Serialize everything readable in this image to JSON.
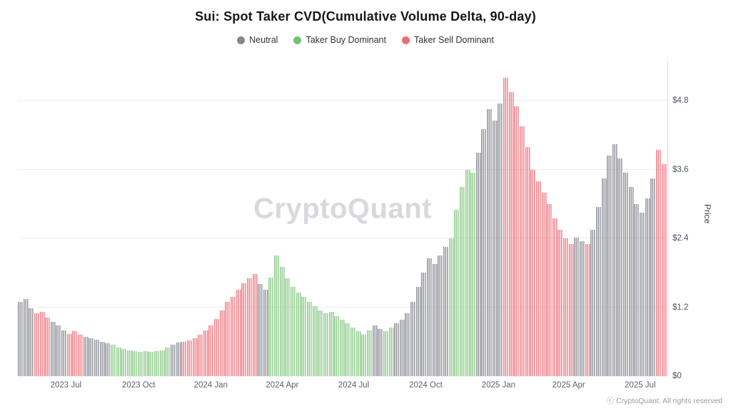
{
  "header": {
    "title": "Sui: Spot Taker CVD(Cumulative Volume Delta, 90-day)"
  },
  "legend": {
    "items": [
      {
        "label": "Neutral",
        "color": "#84868f",
        "key": "n"
      },
      {
        "label": "Taker Buy Dominant",
        "color": "#74c271",
        "key": "g"
      },
      {
        "label": "Taker Sell Dominant",
        "color": "#e96d75",
        "key": "r"
      }
    ]
  },
  "watermark": "CryptoQuant",
  "footer": {
    "copyright": "ⓒ CryptoQuant. All rights reserved"
  },
  "chart_data": {
    "type": "bar",
    "title": "Sui: Spot Taker CVD(Cumulative Volume Delta, 90-day)",
    "xlabel": "",
    "ylabel": "Price",
    "ylim": [
      0,
      5.5
    ],
    "grid": true,
    "legend_position": "top-center",
    "yticks": [
      {
        "label": "$0",
        "value": 0
      },
      {
        "label": "$1.2",
        "value": 1.2
      },
      {
        "label": "$2.4",
        "value": 2.4
      },
      {
        "label": "$3.6",
        "value": 3.6
      },
      {
        "label": "$4.8",
        "value": 4.8
      }
    ],
    "xticks": [
      {
        "label": "2023 Jul",
        "pos_pct": 7.4
      },
      {
        "label": "2023 Oct",
        "pos_pct": 18.6
      },
      {
        "label": "2024 Jan",
        "pos_pct": 29.7
      },
      {
        "label": "2024 Apr",
        "pos_pct": 40.7
      },
      {
        "label": "2024 Jul",
        "pos_pct": 51.7
      },
      {
        "label": "2024 Oct",
        "pos_pct": 62.8
      },
      {
        "label": "2025 Jan",
        "pos_pct": 74.0
      },
      {
        "label": "2025 Apr",
        "pos_pct": 84.8
      },
      {
        "label": "2025 Jul",
        "pos_pct": 95.8
      }
    ],
    "regime_colors": {
      "n": "#94959e",
      "g": "#92cc8e",
      "r": "#ef828a"
    },
    "regime_labels": {
      "n": "Neutral",
      "g": "Taker Buy Dominant",
      "r": "Taker Sell Dominant"
    },
    "series": [
      {
        "name": "SUI price colored by taker CVD regime (weekly approximation)",
        "points": [
          [
            1.3,
            "n"
          ],
          [
            1.35,
            "n"
          ],
          [
            1.18,
            "n"
          ],
          [
            1.1,
            "r"
          ],
          [
            1.12,
            "r"
          ],
          [
            1.02,
            "r"
          ],
          [
            0.95,
            "n"
          ],
          [
            0.88,
            "n"
          ],
          [
            0.8,
            "n"
          ],
          [
            0.74,
            "r"
          ],
          [
            0.78,
            "r"
          ],
          [
            0.72,
            "r"
          ],
          [
            0.68,
            "n"
          ],
          [
            0.66,
            "n"
          ],
          [
            0.63,
            "n"
          ],
          [
            0.6,
            "n"
          ],
          [
            0.57,
            "n"
          ],
          [
            0.55,
            "g"
          ],
          [
            0.5,
            "g"
          ],
          [
            0.47,
            "g"
          ],
          [
            0.45,
            "g"
          ],
          [
            0.44,
            "g"
          ],
          [
            0.42,
            "g"
          ],
          [
            0.43,
            "g"
          ],
          [
            0.42,
            "g"
          ],
          [
            0.44,
            "g"
          ],
          [
            0.45,
            "g"
          ],
          [
            0.5,
            "g"
          ],
          [
            0.55,
            "n"
          ],
          [
            0.58,
            "n"
          ],
          [
            0.6,
            "r"
          ],
          [
            0.62,
            "r"
          ],
          [
            0.66,
            "r"
          ],
          [
            0.72,
            "r"
          ],
          [
            0.8,
            "r"
          ],
          [
            0.88,
            "r"
          ],
          [
            1.0,
            "r"
          ],
          [
            1.15,
            "r"
          ],
          [
            1.3,
            "r"
          ],
          [
            1.38,
            "r"
          ],
          [
            1.5,
            "r"
          ],
          [
            1.62,
            "r"
          ],
          [
            1.7,
            "r"
          ],
          [
            1.78,
            "r"
          ],
          [
            1.6,
            "n"
          ],
          [
            1.5,
            "n"
          ],
          [
            1.72,
            "g"
          ],
          [
            2.1,
            "g"
          ],
          [
            1.9,
            "g"
          ],
          [
            1.7,
            "g"
          ],
          [
            1.55,
            "g"
          ],
          [
            1.45,
            "g"
          ],
          [
            1.38,
            "g"
          ],
          [
            1.3,
            "g"
          ],
          [
            1.22,
            "g"
          ],
          [
            1.15,
            "g"
          ],
          [
            1.1,
            "g"
          ],
          [
            1.12,
            "g"
          ],
          [
            1.05,
            "g"
          ],
          [
            0.98,
            "g"
          ],
          [
            0.92,
            "g"
          ],
          [
            0.85,
            "g"
          ],
          [
            0.78,
            "g"
          ],
          [
            0.72,
            "g"
          ],
          [
            0.8,
            "g"
          ],
          [
            0.88,
            "n"
          ],
          [
            0.82,
            "n"
          ],
          [
            0.78,
            "g"
          ],
          [
            0.85,
            "g"
          ],
          [
            0.92,
            "n"
          ],
          [
            0.98,
            "n"
          ],
          [
            1.1,
            "n"
          ],
          [
            1.3,
            "n"
          ],
          [
            1.55,
            "n"
          ],
          [
            1.8,
            "n"
          ],
          [
            2.05,
            "n"
          ],
          [
            1.95,
            "n"
          ],
          [
            2.1,
            "n"
          ],
          [
            2.25,
            "n"
          ],
          [
            2.4,
            "g"
          ],
          [
            2.9,
            "g"
          ],
          [
            3.3,
            "g"
          ],
          [
            3.6,
            "g"
          ],
          [
            3.55,
            "g"
          ],
          [
            3.9,
            "n"
          ],
          [
            4.3,
            "n"
          ],
          [
            4.65,
            "n"
          ],
          [
            4.45,
            "n"
          ],
          [
            4.75,
            "n"
          ],
          [
            5.2,
            "r"
          ],
          [
            4.95,
            "r"
          ],
          [
            4.7,
            "r"
          ],
          [
            4.35,
            "r"
          ],
          [
            4.0,
            "r"
          ],
          [
            3.6,
            "r"
          ],
          [
            3.4,
            "r"
          ],
          [
            3.2,
            "r"
          ],
          [
            3.0,
            "r"
          ],
          [
            2.75,
            "r"
          ],
          [
            2.55,
            "r"
          ],
          [
            2.4,
            "r"
          ],
          [
            2.3,
            "r"
          ],
          [
            2.42,
            "n"
          ],
          [
            2.35,
            "n"
          ],
          [
            2.3,
            "r"
          ],
          [
            2.55,
            "n"
          ],
          [
            2.95,
            "n"
          ],
          [
            3.45,
            "n"
          ],
          [
            3.85,
            "n"
          ],
          [
            4.05,
            "n"
          ],
          [
            3.8,
            "n"
          ],
          [
            3.55,
            "n"
          ],
          [
            3.3,
            "n"
          ],
          [
            3.0,
            "n"
          ],
          [
            2.85,
            "n"
          ],
          [
            3.1,
            "n"
          ],
          [
            3.45,
            "n"
          ],
          [
            3.95,
            "r"
          ],
          [
            3.7,
            "r"
          ]
        ]
      }
    ]
  }
}
